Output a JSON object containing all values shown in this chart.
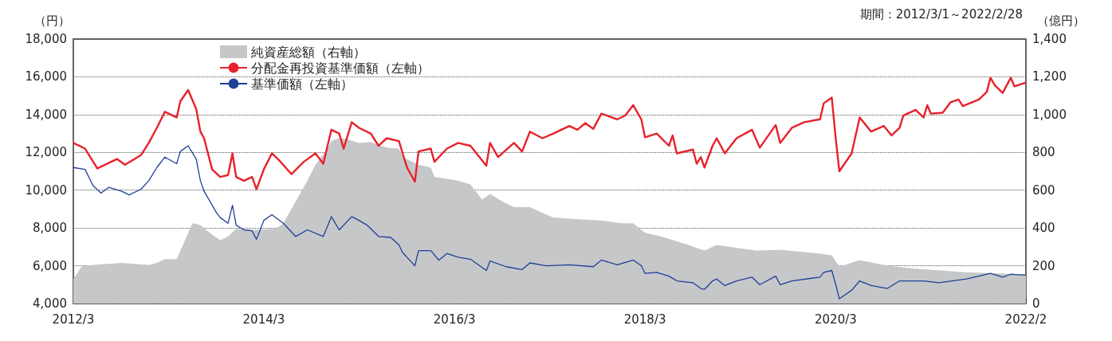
{
  "chart_data": {
    "type": "line",
    "ylabel": "（円）",
    "y2label": "（億円）",
    "annotations": [
      "期間：2012/3/1～2022/2/28"
    ],
    "xlim": [
      "2012-03-01",
      "2022-02-28"
    ],
    "xticks": [
      {
        "value": "2012-03-01",
        "label": "2012/3"
      },
      {
        "value": "2014-03-01",
        "label": "2014/3"
      },
      {
        "value": "2016-03-01",
        "label": "2016/3"
      },
      {
        "value": "2018-03-01",
        "label": "2018/3"
      },
      {
        "value": "2020-03-01",
        "label": "2020/3"
      },
      {
        "value": "2022-02-28",
        "label": "2022/2"
      }
    ],
    "ylim": [
      4000,
      18000
    ],
    "yticks": [
      {
        "value": 4000,
        "label": "4,000"
      },
      {
        "value": 6000,
        "label": "6,000"
      },
      {
        "value": 8000,
        "label": "8,000"
      },
      {
        "value": 10000,
        "label": "10,000"
      },
      {
        "value": 12000,
        "label": "12,000"
      },
      {
        "value": 14000,
        "label": "14,000"
      },
      {
        "value": 16000,
        "label": "16,000"
      },
      {
        "value": 18000,
        "label": "18,000"
      }
    ],
    "y2lim": [
      0,
      1400
    ],
    "y2ticks": [
      0,
      200,
      400,
      600,
      800,
      {
        "value": 1000,
        "label": "1,000"
      },
      {
        "value": 1200,
        "label": "1,200"
      },
      {
        "value": 1400,
        "label": "1,400"
      }
    ],
    "grid": "y",
    "legend": "top left",
    "marker": "none",
    "line_style": "solid",
    "series": [
      {
        "name": "純資産総額（右軸）",
        "type": "area",
        "axis": "y2",
        "color": "#c6c7c9",
        "x": [
          "2012-03-01",
          "2012-04-01",
          "2012-05-15",
          "2012-09-01",
          "2012-12-15",
          "2013-01-15",
          "2013-02-15",
          "2013-04-01",
          "2013-05-01",
          "2013-06-01",
          "2013-07-01",
          "2013-08-15",
          "2013-09-15",
          "2013-10-15",
          "2013-11-15",
          "2014-01-15",
          "2014-04-15",
          "2014-05-15",
          "2014-07-01",
          "2014-08-15",
          "2014-09-15",
          "2014-11-01",
          "2014-11-15",
          "2014-12-15",
          "2015-01-15",
          "2015-03-01",
          "2015-04-15",
          "2015-06-15",
          "2015-08-01",
          "2015-08-15",
          "2015-10-15",
          "2015-12-01",
          "2015-12-15",
          "2016-02-01",
          "2016-03-15",
          "2016-05-01",
          "2016-06-15",
          "2016-07-15",
          "2016-09-01",
          "2016-10-15",
          "2016-12-15",
          "2017-02-01",
          "2017-03-15",
          "2017-07-01",
          "2017-09-15",
          "2017-12-01",
          "2018-01-15",
          "2018-03-01",
          "2018-05-01",
          "2018-08-15",
          "2018-10-15",
          "2018-12-01",
          "2019-05-01",
          "2019-08-01",
          "2020-01-01",
          "2020-02-15",
          "2020-03-15",
          "2020-06-01",
          "2020-09-15",
          "2021-01-01",
          "2021-07-15",
          "2022-02-28"
        ],
        "values": [
          130,
          195,
          205,
          215,
          205,
          215,
          235,
          235,
          330,
          425,
          415,
          365,
          335,
          355,
          395,
          390,
          395,
          425,
          540,
          650,
          735,
          820,
          860,
          875,
          870,
          850,
          855,
          825,
          820,
          775,
          735,
          720,
          670,
          660,
          650,
          630,
          550,
          580,
          540,
          510,
          510,
          480,
          455,
          445,
          440,
          425,
          425,
          375,
          355,
          310,
          280,
          310,
          280,
          285,
          265,
          255,
          195,
          230,
          200,
          185,
          165,
          155
        ]
      },
      {
        "name": "分配金再投資基準価額（左軸）",
        "color": "#e8212b",
        "x": [
          "2012-03-01",
          "2012-04-15",
          "2012-06-01",
          "2012-08-15",
          "2012-09-15",
          "2012-11-15",
          "2012-12-15",
          "2013-01-15",
          "2013-02-15",
          "2013-04-01",
          "2013-04-15",
          "2013-05-15",
          "2013-06-15",
          "2013-07-01",
          "2013-07-15",
          "2013-08-15",
          "2013-09-15",
          "2013-10-15",
          "2013-11-01",
          "2013-11-15",
          "2013-12-15",
          "2014-01-15",
          "2014-02-01",
          "2014-03-01",
          "2014-04-01",
          "2014-05-01",
          "2014-06-15",
          "2014-08-01",
          "2014-09-15",
          "2014-10-15",
          "2014-11-15",
          "2014-12-15",
          "2015-01-01",
          "2015-02-01",
          "2015-03-01",
          "2015-04-15",
          "2015-05-15",
          "2015-06-15",
          "2015-08-01",
          "2015-08-15",
          "2015-09-01",
          "2015-10-01",
          "2015-10-15",
          "2015-12-01",
          "2015-12-15",
          "2016-02-01",
          "2016-03-15",
          "2016-05-01",
          "2016-07-01",
          "2016-07-15",
          "2016-08-15",
          "2016-10-15",
          "2016-11-15",
          "2016-12-15",
          "2017-02-01",
          "2017-03-15",
          "2017-05-15",
          "2017-06-15",
          "2017-07-15",
          "2017-08-15",
          "2017-09-15",
          "2017-11-15",
          "2017-12-15",
          "2018-01-15",
          "2018-02-15",
          "2018-03-01",
          "2018-04-15",
          "2018-06-01",
          "2018-06-15",
          "2018-07-01",
          "2018-09-01",
          "2018-09-15",
          "2018-10-01",
          "2018-10-15",
          "2018-11-15",
          "2018-12-01",
          "2019-01-01",
          "2019-02-15",
          "2019-04-15",
          "2019-05-15",
          "2019-07-15",
          "2019-08-01",
          "2019-09-15",
          "2019-11-01",
          "2020-01-01",
          "2020-01-15",
          "2020-02-15",
          "2020-03-01",
          "2020-03-15",
          "2020-05-01",
          "2020-06-01",
          "2020-07-15",
          "2020-09-01",
          "2020-10-01",
          "2020-11-01",
          "2020-11-15",
          "2021-01-01",
          "2021-02-01",
          "2021-02-15",
          "2021-03-01",
          "2021-04-15",
          "2021-05-15",
          "2021-06-15",
          "2021-07-01",
          "2021-09-01",
          "2021-10-01",
          "2021-10-15",
          "2021-11-01",
          "2021-12-01",
          "2022-01-01",
          "2022-01-15",
          "2022-02-28"
        ],
        "values": [
          12500,
          12200,
          11150,
          11650,
          11350,
          11850,
          12500,
          13300,
          14150,
          13850,
          14700,
          15300,
          14300,
          13100,
          12750,
          11100,
          10700,
          10800,
          11950,
          10700,
          10500,
          10700,
          10050,
          11100,
          11950,
          11550,
          10850,
          11500,
          11950,
          11400,
          13200,
          13000,
          12200,
          13600,
          13300,
          13000,
          12350,
          12750,
          12600,
          11950,
          11200,
          10450,
          12050,
          12200,
          11500,
          12200,
          12500,
          12350,
          11300,
          12500,
          11750,
          12500,
          12050,
          13100,
          12750,
          13000,
          13400,
          13200,
          13550,
          13250,
          14050,
          13750,
          13950,
          14500,
          13750,
          12800,
          13000,
          12350,
          12900,
          11950,
          12150,
          11400,
          11750,
          11200,
          12350,
          12750,
          11950,
          12750,
          13200,
          12250,
          13450,
          12500,
          13300,
          13600,
          13750,
          14600,
          14900,
          12750,
          11000,
          11950,
          13850,
          13100,
          13400,
          12900,
          13300,
          13950,
          14250,
          13850,
          14500,
          14050,
          14100,
          14650,
          14800,
          14450,
          14800,
          15200,
          15950,
          15550,
          15150,
          15950,
          15500,
          15700
        ]
      },
      {
        "name": "基準価額（左軸）",
        "color": "#1f3f99",
        "x": [
          "2012-03-01",
          "2012-04-15",
          "2012-05-15",
          "2012-06-15",
          "2012-07-15",
          "2012-09-01",
          "2012-10-01",
          "2012-11-15",
          "2012-12-15",
          "2013-01-15",
          "2013-02-15",
          "2013-04-01",
          "2013-04-15",
          "2013-05-15",
          "2013-06-15",
          "2013-07-01",
          "2013-07-15",
          "2013-09-01",
          "2013-09-15",
          "2013-10-15",
          "2013-11-01",
          "2013-11-15",
          "2013-12-15",
          "2014-01-15",
          "2014-02-01",
          "2014-03-01",
          "2014-04-01",
          "2014-05-15",
          "2014-07-01",
          "2014-08-15",
          "2014-10-15",
          "2014-11-15",
          "2014-12-15",
          "2015-02-01",
          "2015-03-01",
          "2015-04-01",
          "2015-05-15",
          "2015-07-01",
          "2015-08-01",
          "2015-08-15",
          "2015-10-01",
          "2015-10-15",
          "2015-12-01",
          "2016-01-01",
          "2016-02-01",
          "2016-03-15",
          "2016-05-01",
          "2016-07-01",
          "2016-07-15",
          "2016-09-15",
          "2016-11-15",
          "2016-12-15",
          "2017-02-15",
          "2017-05-15",
          "2017-08-15",
          "2017-09-15",
          "2017-11-15",
          "2018-01-15",
          "2018-02-15",
          "2018-03-01",
          "2018-04-15",
          "2018-06-01",
          "2018-07-01",
          "2018-09-01",
          "2018-10-01",
          "2018-10-15",
          "2018-11-15",
          "2018-12-01",
          "2019-01-01",
          "2019-02-15",
          "2019-04-15",
          "2019-05-15",
          "2019-07-15",
          "2019-08-01",
          "2019-09-15",
          "2020-01-01",
          "2020-01-15",
          "2020-02-15",
          "2020-03-01",
          "2020-03-15",
          "2020-05-01",
          "2020-06-01",
          "2020-07-15",
          "2020-09-15",
          "2020-11-01",
          "2021-02-01",
          "2021-04-01",
          "2021-07-15",
          "2021-10-15",
          "2021-12-01",
          "2022-01-01",
          "2022-02-28"
        ],
        "values": [
          11200,
          11100,
          10250,
          9850,
          10150,
          9950,
          9750,
          10050,
          10500,
          11200,
          11750,
          11400,
          12050,
          12350,
          11650,
          10500,
          9950,
          8800,
          8550,
          8250,
          9200,
          8150,
          7900,
          7850,
          7400,
          8400,
          8700,
          8250,
          7550,
          7900,
          7550,
          8600,
          7900,
          8600,
          8400,
          8150,
          7550,
          7500,
          7100,
          6700,
          6000,
          6800,
          6800,
          6300,
          6650,
          6450,
          6350,
          5750,
          6250,
          5950,
          5800,
          6150,
          6000,
          6050,
          5950,
          6300,
          6050,
          6300,
          6000,
          5600,
          5650,
          5450,
          5200,
          5100,
          4800,
          4750,
          5200,
          5300,
          4950,
          5200,
          5400,
          5000,
          5450,
          5000,
          5200,
          5400,
          5650,
          5750,
          5000,
          4250,
          4700,
          5200,
          4950,
          4800,
          5200,
          5200,
          5100,
          5300,
          5600,
          5400,
          5550,
          5500
        ]
      }
    ]
  }
}
